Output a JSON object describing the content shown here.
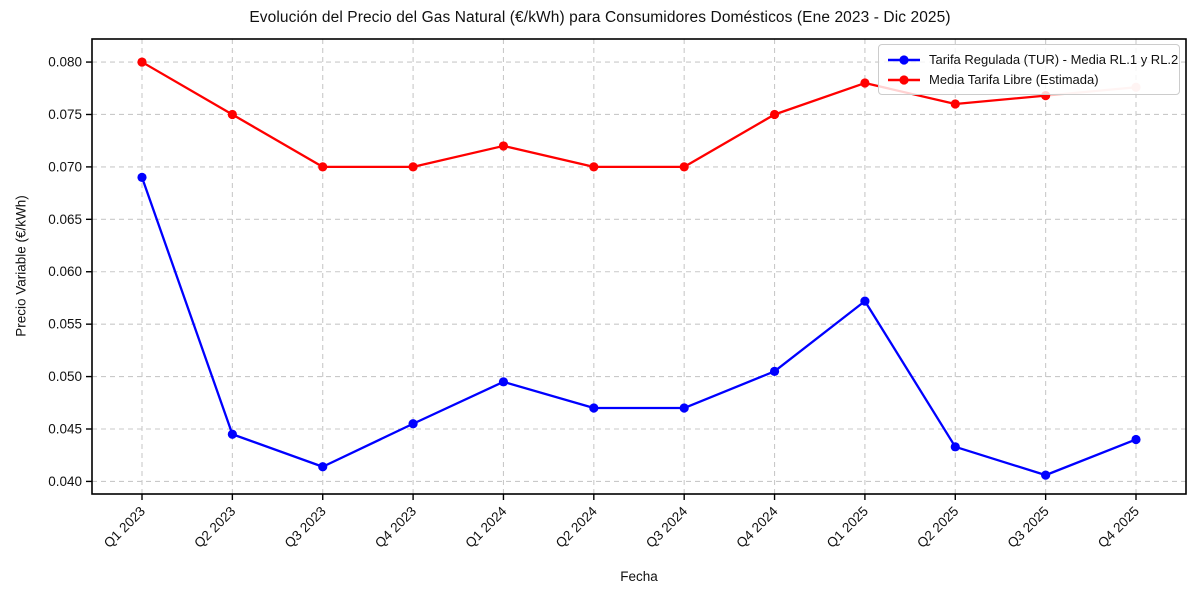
{
  "chart_data": {
    "type": "line",
    "title": "Evolución del Precio del Gas Natural (€/kWh) para Consumidores Domésticos (Ene 2023 - Dic 2025)",
    "xlabel": "Fecha",
    "ylabel": "Precio Variable (€/kWh)",
    "categories": [
      "Q1 2023",
      "Q2 2023",
      "Q3 2023",
      "Q4 2023",
      "Q1 2024",
      "Q2 2024",
      "Q3 2024",
      "Q4 2024",
      "Q1 2025",
      "Q2 2025",
      "Q3 2025",
      "Q4 2025"
    ],
    "series": [
      {
        "name": "Tarifa Regulada (TUR) - Media RL.1 y RL.2",
        "color": "#0000ff",
        "values": [
          0.069,
          0.0445,
          0.0414,
          0.0455,
          0.0495,
          0.047,
          0.047,
          0.0505,
          0.0572,
          0.0433,
          0.0406,
          0.044
        ]
      },
      {
        "name": "Media Tarifa Libre (Estimada)",
        "color": "#ff0000",
        "values": [
          0.08,
          0.075,
          0.07,
          0.07,
          0.072,
          0.07,
          0.07,
          0.075,
          0.078,
          0.076,
          0.0768,
          0.0776
        ],
        "faded_from_index": 10,
        "faded_color": "#ffc1bc"
      }
    ],
    "y_ticks": [
      0.04,
      0.045,
      0.05,
      0.055,
      0.06,
      0.065,
      0.07,
      0.075,
      0.08
    ],
    "ylim": [
      0.0388,
      0.0822
    ],
    "grid": true,
    "grid_color": "#c9c9c9",
    "axis_color": "#000000",
    "legend_position": "upper right"
  }
}
